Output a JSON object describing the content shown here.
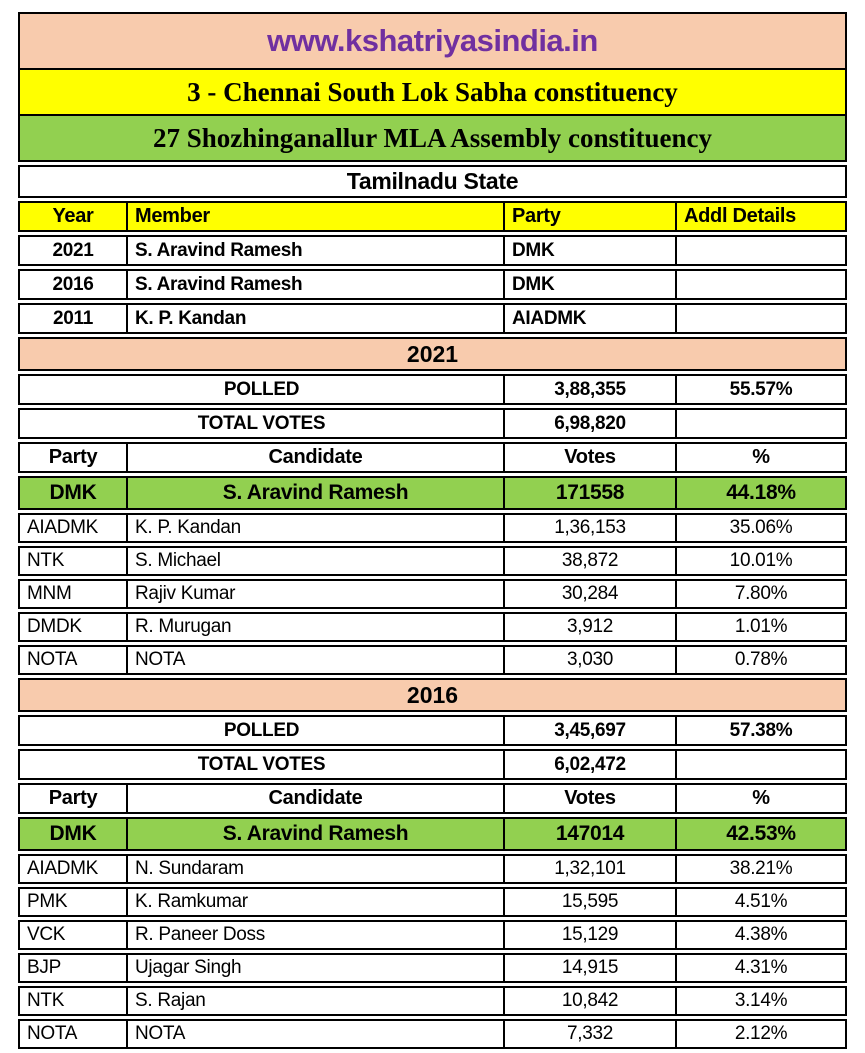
{
  "site_title": "www.kshatriyasindia.in",
  "constituency": {
    "lok_sabha": "3 - Chennai South Lok Sabha constituency",
    "assembly": "27 Shozhinganallur MLA Assembly constituency",
    "state": "Tamilnadu State"
  },
  "members": {
    "columns": {
      "year": "Year",
      "member": "Member",
      "party": "Party",
      "addl": "Addl Details"
    },
    "rows": [
      {
        "year": "2021",
        "member": "S. Aravind Ramesh",
        "party": "DMK",
        "addl": ""
      },
      {
        "year": "2016",
        "member": "S. Aravind Ramesh",
        "party": "DMK",
        "addl": ""
      },
      {
        "year": "2011",
        "member": "K. P. Kandan",
        "party": "AIADMK",
        "addl": ""
      }
    ]
  },
  "elections": [
    {
      "year": "2021",
      "polled": {
        "label": "POLLED",
        "votes": "3,88,355",
        "pct": "55.57%"
      },
      "total": {
        "label": "TOTAL VOTES",
        "votes": "6,98,820",
        "pct": ""
      },
      "columns": {
        "party": "Party",
        "candidate": "Candidate",
        "votes": "Votes",
        "pct": "%"
      },
      "winner": {
        "party": "DMK",
        "candidate": "S. Aravind Ramesh",
        "votes": "171558",
        "pct": "44.18%"
      },
      "rows": [
        {
          "party": "AIADMK",
          "candidate": "K. P. Kandan",
          "votes": "1,36,153",
          "pct": "35.06%"
        },
        {
          "party": "NTK",
          "candidate": "S. Michael",
          "votes": "38,872",
          "pct": "10.01%"
        },
        {
          "party": "MNM",
          "candidate": "Rajiv Kumar",
          "votes": "30,284",
          "pct": "7.80%"
        },
        {
          "party": "DMDK",
          "candidate": "R. Murugan",
          "votes": "3,912",
          "pct": "1.01%"
        },
        {
          "party": "NOTA",
          "candidate": "NOTA",
          "votes": "3,030",
          "pct": "0.78%"
        }
      ]
    },
    {
      "year": "2016",
      "polled": {
        "label": "POLLED",
        "votes": "3,45,697",
        "pct": "57.38%"
      },
      "total": {
        "label": "TOTAL VOTES",
        "votes": "6,02,472",
        "pct": ""
      },
      "columns": {
        "party": "Party",
        "candidate": "Candidate",
        "votes": "Votes",
        "pct": "%"
      },
      "winner": {
        "party": "DMK",
        "candidate": "S. Aravind Ramesh",
        "votes": "147014",
        "pct": "42.53%"
      },
      "rows": [
        {
          "party": "AIADMK",
          "candidate": "N. Sundaram",
          "votes": "1,32,101",
          "pct": "38.21%"
        },
        {
          "party": "PMK",
          "candidate": "K. Ramkumar",
          "votes": "15,595",
          "pct": "4.51%"
        },
        {
          "party": "VCK",
          "candidate": "R. Paneer Doss",
          "votes": "15,129",
          "pct": "4.38%"
        },
        {
          "party": "BJP",
          "candidate": "Ujagar Singh",
          "votes": "14,915",
          "pct": "4.31%"
        },
        {
          "party": "NTK",
          "candidate": "S. Rajan",
          "votes": "10,842",
          "pct": "3.14%"
        },
        {
          "party": "NOTA",
          "candidate": "NOTA",
          "votes": "7,332",
          "pct": "2.12%"
        }
      ]
    }
  ],
  "colors": {
    "peach_band": "#F8CBAD",
    "yellow_band": "#FFFF00",
    "green_band": "#92D050",
    "site_title_purple": "#7030A0",
    "border": "#000000"
  }
}
